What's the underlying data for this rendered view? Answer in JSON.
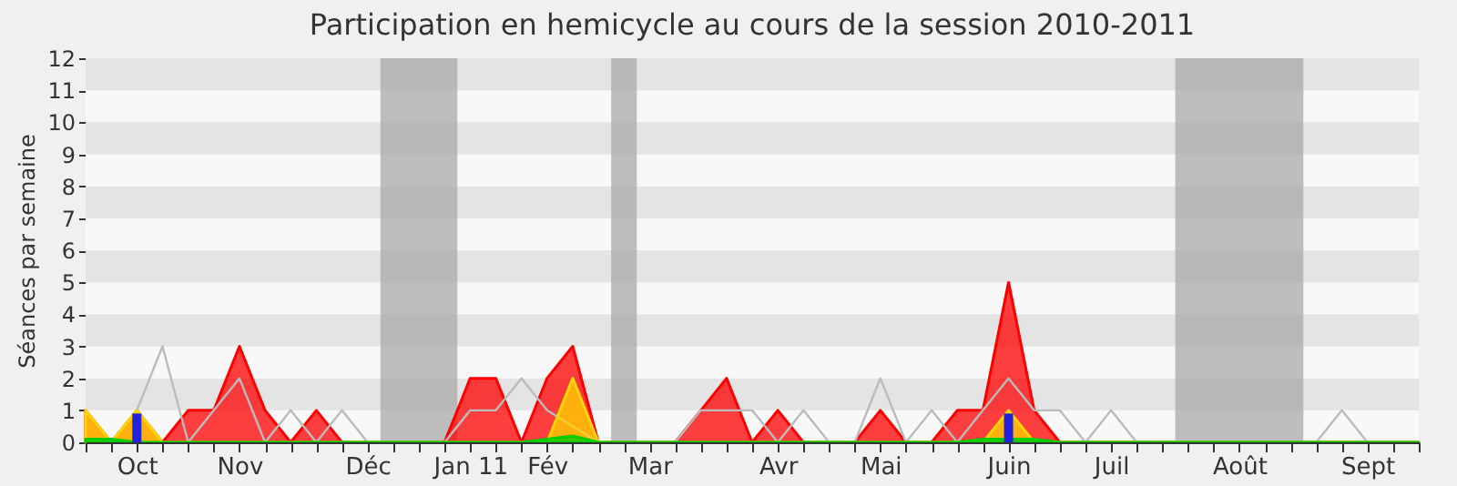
{
  "chart_data": {
    "type": "area",
    "title": "Participation en hemicycle au cours de la session 2010-2011",
    "ylabel": "Séances par semaine",
    "categories": [
      null,
      null,
      "Oct",
      null,
      null,
      null,
      "Nov",
      null,
      null,
      null,
      null,
      "Déc",
      null,
      null,
      null,
      "Jan 11",
      null,
      null,
      "Fév",
      null,
      null,
      null,
      "Mar",
      null,
      null,
      null,
      null,
      "Avr",
      null,
      null,
      null,
      "Mai",
      null,
      null,
      null,
      null,
      "Juin",
      null,
      null,
      null,
      "Juil",
      null,
      null,
      null,
      null,
      "Août",
      null,
      null,
      null,
      null,
      "Sept",
      null,
      null
    ],
    "series": [
      {
        "color": "#ff0000",
        "values": [
          1,
          0,
          1,
          0,
          1,
          1,
          3,
          1,
          0,
          1,
          0,
          0,
          0,
          0,
          0,
          2,
          2,
          0,
          2,
          3,
          0,
          0,
          0,
          0,
          1,
          2,
          0,
          1,
          0,
          0,
          0,
          1,
          0,
          0,
          1,
          1,
          5,
          1,
          0,
          0,
          0,
          0,
          0,
          0,
          0,
          0,
          0,
          0,
          0,
          0,
          0,
          0,
          0
        ]
      },
      {
        "type": "line",
        "color": "#bbbbbb",
        "values": [
          null,
          0,
          1,
          3,
          0,
          1,
          2,
          0,
          1,
          0,
          1,
          0,
          0,
          0,
          0,
          1,
          1,
          2,
          1,
          null,
          0,
          0,
          0,
          0,
          1,
          1,
          1,
          0,
          1,
          0,
          0,
          2,
          0,
          1,
          0,
          1,
          2,
          1,
          1,
          0,
          1,
          0,
          0,
          0,
          0,
          0,
          0,
          0,
          0,
          1,
          0,
          0,
          0
        ]
      },
      {
        "color": "#ffd700",
        "values": [
          1,
          0,
          1,
          0,
          0,
          0,
          0,
          0,
          0,
          0,
          0,
          0,
          0,
          0,
          0,
          0,
          0,
          0,
          0,
          2,
          0,
          0,
          0,
          0,
          0,
          0,
          0,
          0,
          0,
          0,
          0,
          0,
          0,
          0,
          0,
          0,
          1,
          0,
          0,
          0,
          0,
          0,
          0,
          0,
          0,
          0,
          0,
          0,
          0,
          0,
          0,
          0,
          0
        ]
      },
      {
        "color": "#00cc00",
        "values": [
          0.1,
          0.1,
          0,
          0,
          0,
          0,
          0,
          0,
          0,
          0,
          0,
          0,
          0,
          0,
          0,
          0,
          0,
          0,
          0.1,
          0.2,
          0,
          0,
          0,
          0,
          0,
          0,
          0,
          0,
          0,
          0,
          0,
          0,
          0,
          0,
          0,
          0.1,
          0.1,
          0.1,
          0,
          0,
          0,
          0,
          0,
          0,
          0,
          0,
          0,
          0,
          0,
          0,
          0,
          0,
          0
        ]
      },
      {
        "type": "bar",
        "color": "#2222dd",
        "values": [
          null,
          null,
          0.9,
          null,
          null,
          null,
          null,
          null,
          null,
          null,
          null,
          null,
          null,
          null,
          null,
          null,
          null,
          null,
          null,
          null,
          null,
          null,
          null,
          null,
          null,
          null,
          null,
          null,
          null,
          null,
          null,
          null,
          null,
          null,
          null,
          null,
          0.9,
          null,
          null,
          null,
          null,
          null,
          null,
          null,
          null,
          null,
          null,
          null,
          null,
          null,
          null,
          null,
          null
        ]
      }
    ],
    "ylim": [
      0,
      12
    ],
    "yticks": [
      0,
      1,
      2,
      3,
      4,
      5,
      6,
      7,
      8,
      9,
      10,
      11,
      12
    ]
  }
}
